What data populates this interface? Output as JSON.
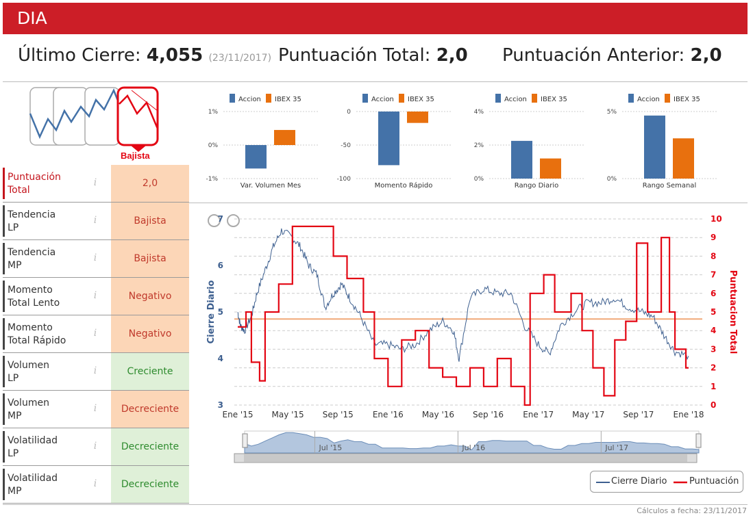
{
  "header": {
    "title": "DIA"
  },
  "summary": {
    "close_label": "Último Cierre:",
    "close_value": "4,055",
    "close_date": "(23/11/2017)",
    "total_label": "Puntuación Total:",
    "total_value": "2,0",
    "prev_label": "Puntuación Anterior:",
    "prev_value": "2,0"
  },
  "trend": {
    "label": "Bajista"
  },
  "rows": [
    {
      "label_l1": "Puntuación",
      "label_l2": "Total",
      "value": "2,0"
    },
    {
      "label_l1": "Tendencia",
      "label_l2": "LP",
      "value": "Bajista"
    },
    {
      "label_l1": "Tendencia",
      "label_l2": "MP",
      "value": "Bajista"
    },
    {
      "label_l1": "Momento",
      "label_l2": "Total Lento",
      "value": "Negativo"
    },
    {
      "label_l1": "Momento",
      "label_l2": "Total Rápido",
      "value": "Negativo"
    },
    {
      "label_l1": "Volumen",
      "label_l2": "LP",
      "value": "Creciente"
    },
    {
      "label_l1": "Volumen",
      "label_l2": "MP",
      "value": "Decreciente"
    },
    {
      "label_l1": "Volatilidad",
      "label_l2": "LP",
      "value": "Decreciente"
    },
    {
      "label_l1": "Volatilidad",
      "label_l2": "MP",
      "value": "Decreciente"
    }
  ],
  "colors": {
    "brand": "#cc1e27",
    "accion": "#4472a8",
    "ibex": "#e8700e",
    "score": "#e30613",
    "close": "#3d5f8f",
    "ref": "#f0a878"
  },
  "chart_data": [
    {
      "type": "bar",
      "title": "Var. Volumen Mes",
      "series": [
        {
          "name": "Accion",
          "values": [
            -0.7
          ]
        },
        {
          "name": "IBEX 35",
          "values": [
            0.45
          ]
        }
      ],
      "yticks": [
        "1%",
        "0%",
        "-1%"
      ],
      "ylim": [
        -1,
        1
      ]
    },
    {
      "type": "bar",
      "title": "Momento Rápido",
      "series": [
        {
          "name": "Accion",
          "values": [
            -80
          ]
        },
        {
          "name": "IBEX 35",
          "values": [
            -17
          ]
        }
      ],
      "yticks": [
        "0",
        "-50",
        "-100"
      ],
      "ylim": [
        -100,
        0
      ]
    },
    {
      "type": "bar",
      "title": "Rango Diario",
      "series": [
        {
          "name": "Accion",
          "values": [
            2.25
          ]
        },
        {
          "name": "IBEX 35",
          "values": [
            1.2
          ]
        }
      ],
      "yticks": [
        "4%",
        "2%",
        "0%"
      ],
      "ylim": [
        0,
        4
      ]
    },
    {
      "type": "bar",
      "title": "Rango Semanal",
      "series": [
        {
          "name": "Accion",
          "values": [
            4.7
          ]
        },
        {
          "name": "IBEX 35",
          "values": [
            3.0
          ]
        }
      ],
      "yticks": [
        "5%",
        "0%"
      ],
      "ylim": [
        0,
        5
      ]
    },
    {
      "type": "line",
      "x_ticks": [
        "Ene '15",
        "May '15",
        "Sep '15",
        "Ene '16",
        "May '16",
        "Sep '16",
        "Ene '17",
        "May '17",
        "Sep '17",
        "Ene '18"
      ],
      "ylabel_left": "Cierre Diario",
      "ylabel_right": "Puntuacion Total",
      "ylim_left": [
        3,
        7
      ],
      "yticks_left": [
        "3",
        "4",
        "5",
        "6",
        "7"
      ],
      "ylim_right": [
        0,
        10
      ],
      "yticks_right": [
        "0",
        "1",
        "2",
        "3",
        "4",
        "5",
        "6",
        "7",
        "8",
        "9",
        "10"
      ],
      "reference_line": 4.85,
      "navigator_labels": [
        "Jul '15",
        "Jul '16",
        "Jul '17"
      ],
      "series": [
        {
          "name": "Cierre Diario",
          "points": [
            [
              0,
              5.0
            ],
            [
              0.1,
              4.7
            ],
            [
              0.25,
              4.6
            ],
            [
              0.5,
              4.9
            ],
            [
              0.7,
              5.4
            ],
            [
              1.0,
              5.9
            ],
            [
              1.3,
              6.4
            ],
            [
              1.6,
              6.75
            ],
            [
              2.0,
              6.6
            ],
            [
              2.3,
              6.4
            ],
            [
              2.6,
              6.0
            ],
            [
              2.9,
              5.8
            ],
            [
              3.2,
              5.1
            ],
            [
              3.5,
              5.4
            ],
            [
              3.8,
              5.6
            ],
            [
              4.1,
              5.3
            ],
            [
              4.5,
              4.9
            ],
            [
              5.0,
              4.3
            ],
            [
              5.5,
              4.3
            ],
            [
              6.0,
              4.2
            ],
            [
              6.5,
              4.3
            ],
            [
              7.0,
              4.6
            ],
            [
              7.5,
              4.8
            ],
            [
              7.9,
              4.6
            ],
            [
              8.1,
              4.0
            ],
            [
              8.5,
              5.3
            ],
            [
              9.0,
              5.5
            ],
            [
              9.5,
              5.4
            ],
            [
              10.0,
              5.4
            ],
            [
              10.5,
              4.7
            ],
            [
              11.0,
              4.3
            ],
            [
              11.4,
              4.1
            ],
            [
              11.8,
              4.7
            ],
            [
              12.3,
              5.0
            ],
            [
              12.8,
              5.2
            ],
            [
              13.3,
              5.2
            ],
            [
              13.8,
              5.3
            ],
            [
              14.3,
              5.1
            ],
            [
              14.8,
              5.0
            ],
            [
              15.2,
              4.9
            ],
            [
              15.6,
              4.5
            ],
            [
              16.0,
              4.15
            ],
            [
              16.5,
              4.055
            ]
          ]
        },
        {
          "name": "Puntuación",
          "points": [
            [
              0,
              4.2
            ],
            [
              0.3,
              5.0
            ],
            [
              0.5,
              2.3
            ],
            [
              0.8,
              1.3
            ],
            [
              1.0,
              5.0
            ],
            [
              1.5,
              6.5
            ],
            [
              2.0,
              9.6
            ],
            [
              2.5,
              9.6
            ],
            [
              3.0,
              9.6
            ],
            [
              3.5,
              8.0
            ],
            [
              4.0,
              6.8
            ],
            [
              4.6,
              5.0
            ],
            [
              5.0,
              2.5
            ],
            [
              5.5,
              1.0
            ],
            [
              6.0,
              3.5
            ],
            [
              6.5,
              4.0
            ],
            [
              7.0,
              2.0
            ],
            [
              7.5,
              1.5
            ],
            [
              8.0,
              1.0
            ],
            [
              8.5,
              2.0
            ],
            [
              9.0,
              1.0
            ],
            [
              9.5,
              2.5
            ],
            [
              10.0,
              1.0
            ],
            [
              10.5,
              0.0
            ],
            [
              10.7,
              6.0
            ],
            [
              11.2,
              7.0
            ],
            [
              11.6,
              5.0
            ],
            [
              12.2,
              6.0
            ],
            [
              12.6,
              4.0
            ],
            [
              13.0,
              2.0
            ],
            [
              13.4,
              0.5
            ],
            [
              13.8,
              3.5
            ],
            [
              14.2,
              4.5
            ],
            [
              14.6,
              8.7
            ],
            [
              15.0,
              5.0
            ],
            [
              15.5,
              9.0
            ],
            [
              15.8,
              5.0
            ],
            [
              16.0,
              3.0
            ],
            [
              16.4,
              2.0
            ],
            [
              16.5,
              2.0
            ]
          ]
        }
      ]
    }
  ],
  "legend": {
    "close": "Cierre Diario",
    "score": "Puntuación"
  },
  "mini_legend": {
    "accion": "Accion",
    "ibex": "IBEX 35"
  },
  "footer": {
    "text": "Cálculos a fecha: 23/11/2017"
  }
}
